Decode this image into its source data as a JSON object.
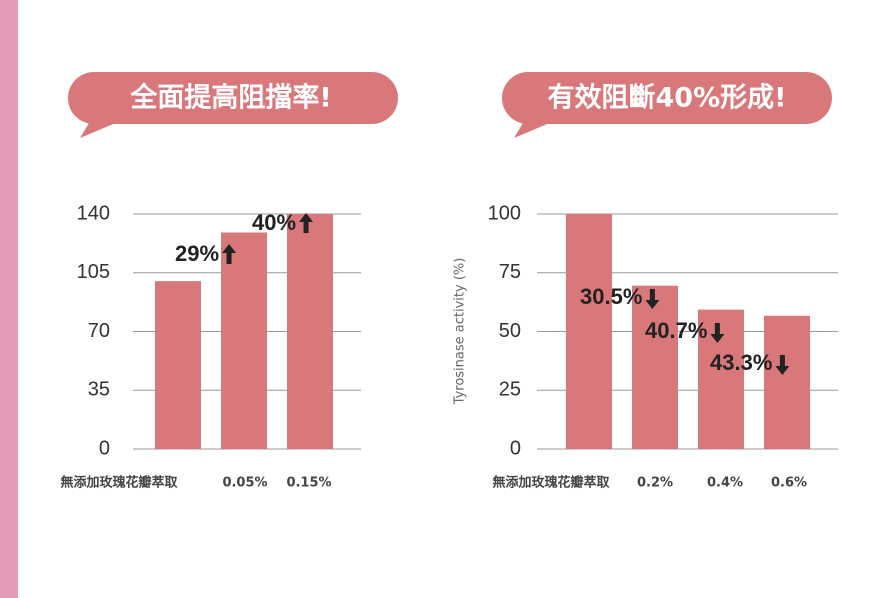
{
  "chart_data": [
    {
      "type": "bar",
      "title": "全面提高阻擋率!",
      "categories": [
        "無添加玫瑰花瓣萃取",
        "0.05%",
        "0.15%"
      ],
      "values": [
        100,
        129,
        140
      ],
      "color": "#d9787a",
      "ylim": [
        0,
        140
      ],
      "yticks": [
        0,
        35,
        70,
        105,
        140
      ],
      "grid": true,
      "annotations": [
        "29%",
        "40%"
      ],
      "arrow": "up"
    },
    {
      "type": "bar",
      "title": "有效阻斷40%形成!",
      "y_label": "Tyrosinase activity (%)",
      "categories": [
        "無添加玫瑰花瓣萃取",
        "0.2%",
        "0.4%",
        "0.6%"
      ],
      "values": [
        100,
        69.5,
        59.3,
        56.7
      ],
      "color": "#d9787a",
      "ylim": [
        0,
        100
      ],
      "yticks": [
        0,
        25,
        50,
        75,
        100
      ],
      "grid": true,
      "annotations": [
        "30.5%",
        "40.7%",
        "43.3%"
      ],
      "arrow": "down"
    }
  ]
}
